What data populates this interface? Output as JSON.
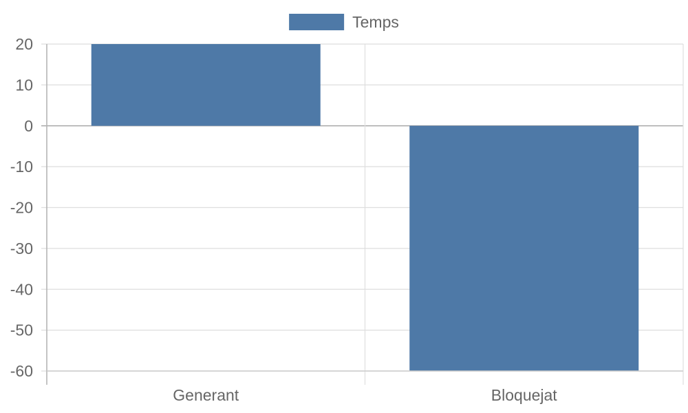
{
  "chart_data": {
    "type": "bar",
    "categories": [
      "Generant",
      "Bloquejat"
    ],
    "series": [
      {
        "name": "Temps",
        "values": [
          20,
          -60
        ],
        "color": "#4e79a7"
      }
    ],
    "ylim": [
      -60,
      20
    ],
    "yticks": [
      20,
      10,
      0,
      -10,
      -20,
      -30,
      -40,
      -50,
      -60
    ],
    "ytick_labels": [
      "20",
      "10",
      "0",
      "-10",
      "-20",
      "-30",
      "-40",
      "-50",
      "-60"
    ],
    "legend_position": "top-center",
    "grid": true,
    "title": "",
    "xlabel": "",
    "ylabel": ""
  }
}
